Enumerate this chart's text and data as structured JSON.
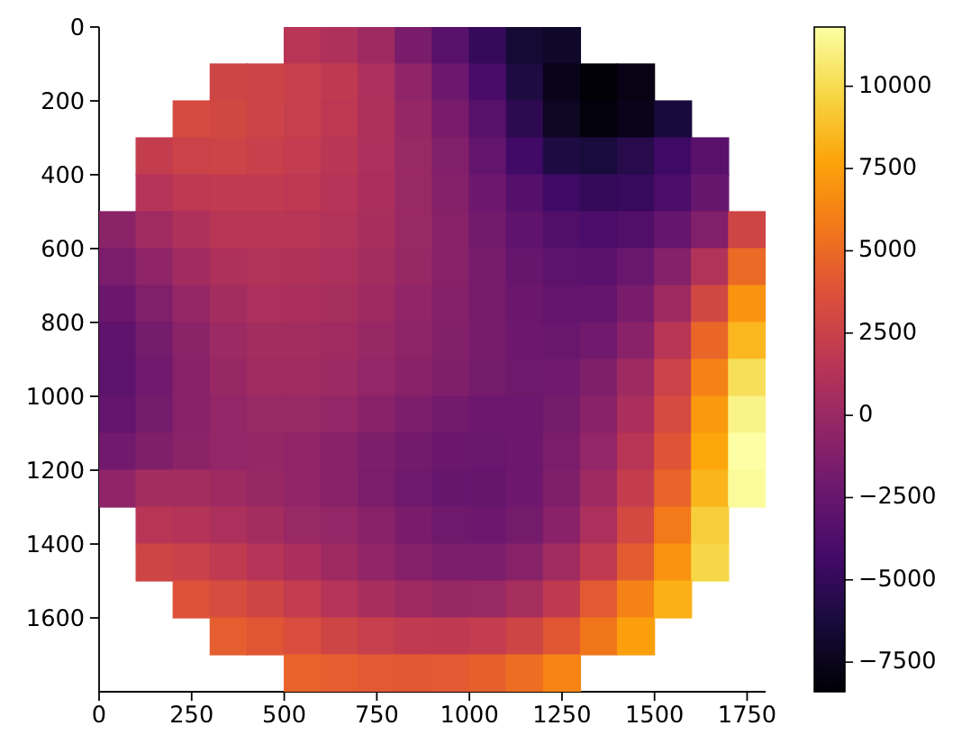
{
  "chart_data": {
    "type": "heatmap",
    "x": [
      50,
      150,
      250,
      350,
      450,
      550,
      650,
      750,
      850,
      950,
      1050,
      1150,
      1250,
      1350,
      1450,
      1550,
      1650,
      1750
    ],
    "cells": [
      [
        null,
        null,
        null,
        null,
        null,
        1500,
        1000,
        200,
        -1600,
        -3300,
        -4900,
        -6600,
        -7000,
        null,
        null,
        null,
        null,
        null
      ],
      [
        null,
        null,
        null,
        2800,
        2700,
        2400,
        1900,
        900,
        -500,
        -2200,
        -4000,
        -6000,
        -7600,
        -8300,
        -7800,
        null,
        null,
        null
      ],
      [
        null,
        null,
        3200,
        3000,
        2700,
        2300,
        1800,
        1000,
        -200,
        -1600,
        -3300,
        -5300,
        -7200,
        -8100,
        -7600,
        -6300,
        null,
        null
      ],
      [
        null,
        2200,
        2600,
        2700,
        2400,
        2100,
        1600,
        900,
        0,
        -1200,
        -2700,
        -4400,
        -6000,
        -6200,
        -5600,
        -4500,
        -3200,
        null
      ],
      [
        null,
        1400,
        1800,
        2000,
        2000,
        1800,
        1400,
        800,
        0,
        -1000,
        -2200,
        -3400,
        -4500,
        -5000,
        -4800,
        -3900,
        -2500,
        null
      ],
      [
        -700,
        300,
        1000,
        1500,
        1600,
        1500,
        1200,
        700,
        0,
        -900,
        -1900,
        -2900,
        -3600,
        -3900,
        -3600,
        -2600,
        -1200,
        2800
      ],
      [
        -1500,
        -500,
        400,
        1000,
        1200,
        1100,
        900,
        500,
        -100,
        -900,
        -1700,
        -2500,
        -3000,
        -3100,
        -2400,
        -1000,
        1200,
        5000
      ],
      [
        -2300,
        -1200,
        -200,
        500,
        900,
        800,
        600,
        200,
        -400,
        -1000,
        -1700,
        -2300,
        -2700,
        -2600,
        -1600,
        200,
        3000,
        7000
      ],
      [
        -2900,
        -1800,
        -700,
        100,
        500,
        500,
        300,
        -100,
        -600,
        -1100,
        -1700,
        -2200,
        -2400,
        -2000,
        -800,
        1500,
        4800,
        8500
      ],
      [
        -3000,
        -2000,
        -900,
        -100,
        300,
        300,
        100,
        -300,
        -800,
        -1300,
        -1800,
        -2100,
        -2000,
        -1300,
        200,
        2600,
        6200,
        10200
      ],
      [
        -2700,
        -1800,
        -900,
        -300,
        0,
        0,
        -300,
        -900,
        -1400,
        -1900,
        -2200,
        -2200,
        -1800,
        -800,
        800,
        3200,
        7200,
        11200
      ],
      [
        -2000,
        -1300,
        -700,
        -300,
        -200,
        -400,
        -900,
        -1400,
        -1900,
        -2300,
        -2400,
        -2200,
        -1500,
        -300,
        1500,
        3900,
        7800,
        11800
      ],
      [
        -500,
        500,
        500,
        200,
        -100,
        -400,
        -900,
        -1500,
        -2100,
        -2500,
        -2500,
        -2200,
        -1300,
        200,
        2200,
        4700,
        8400,
        11600
      ],
      [
        null,
        1500,
        1300,
        900,
        500,
        0,
        -300,
        -900,
        -1600,
        -2100,
        -2200,
        -1800,
        -800,
        900,
        3100,
        5800,
        9400,
        null
      ],
      [
        null,
        2800,
        2500,
        2000,
        1400,
        800,
        200,
        -400,
        -1000,
        -1400,
        -1400,
        -900,
        300,
        2000,
        4300,
        7000,
        9800,
        null
      ],
      [
        null,
        null,
        3700,
        3300,
        2800,
        2100,
        1400,
        700,
        200,
        -100,
        0,
        600,
        1900,
        4200,
        6200,
        8200,
        null,
        null
      ],
      [
        null,
        null,
        null,
        4400,
        4000,
        3400,
        2800,
        2300,
        2000,
        1900,
        2100,
        2800,
        4000,
        5600,
        7500,
        null,
        null,
        null
      ],
      [
        null,
        null,
        null,
        null,
        null,
        4700,
        4400,
        4200,
        4100,
        4200,
        4500,
        5200,
        6300,
        null,
        null,
        null,
        null,
        null
      ]
    ],
    "clim": [
      -8400,
      11800
    ],
    "cticks": [
      -7500,
      -5000,
      -2500,
      0,
      2500,
      5000,
      7500,
      10000
    ],
    "xlim": [
      0,
      1800
    ],
    "xticks": [
      0,
      250,
      500,
      750,
      1000,
      1250,
      1500,
      1750
    ],
    "ylim": [
      1800,
      0
    ],
    "yticks": [
      0,
      200,
      400,
      600,
      800,
      1000,
      1200,
      1400,
      1600
    ]
  }
}
